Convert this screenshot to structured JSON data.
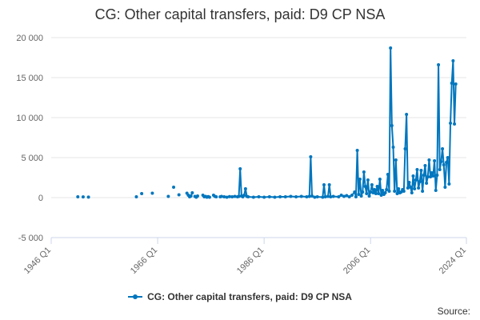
{
  "chart_data": {
    "type": "line",
    "title": "CG: Other capital transfers, paid: D9 CP NSA",
    "xlabel": "",
    "ylabel": "",
    "ylim": [
      -5000,
      20000
    ],
    "yticks": [
      -5000,
      0,
      5000,
      10000,
      15000,
      20000
    ],
    "ytick_labels": [
      "-5 000",
      "0",
      "5 000",
      "10 000",
      "15 000",
      "20 000"
    ],
    "xlim": [
      1946.0,
      2024.0
    ],
    "xticks": [
      1946.0,
      1966.0,
      1986.0,
      2006.0,
      2024.0
    ],
    "xtick_labels": [
      "1946 Q1",
      "1966 Q1",
      "1986 Q1",
      "2006 Q1",
      "2024 Q1"
    ],
    "grid": true,
    "legend_position": "bottom-center",
    "series": [
      {
        "name": "CG: Other capital transfers, paid: D9 CP NSA",
        "color": "#0076be",
        "segments": [
          [
            [
              1951.0,
              100
            ]
          ],
          [
            [
              1952.0,
              90
            ]
          ],
          [
            [
              1953.0,
              60
            ]
          ],
          [
            [
              1962.0,
              100
            ]
          ],
          [
            [
              1963.0,
              500
            ]
          ],
          [
            [
              1965.0,
              550
            ]
          ],
          [
            [
              1968.0,
              150
            ]
          ],
          [
            [
              1969.0,
              1300
            ]
          ],
          [
            [
              1970.0,
              350
            ]
          ],
          [
            [
              1971.5,
              550
            ],
            [
              1971.75,
              300
            ],
            [
              1972.0,
              100
            ],
            [
              1972.25,
              200
            ],
            [
              1972.5,
              600
            ]
          ],
          [
            [
              1973.0,
              150
            ],
            [
              1973.25,
              50
            ],
            [
              1973.5,
              200
            ]
          ],
          [
            [
              1974.5,
              300
            ],
            [
              1974.75,
              100
            ],
            [
              1975.0,
              150
            ],
            [
              1975.25,
              50
            ],
            [
              1975.5,
              120
            ],
            [
              1975.75,
              50
            ]
          ],
          [
            [
              1976.5,
              300
            ],
            [
              1976.75,
              150
            ],
            [
              1977.0,
              100
            ]
          ],
          [
            [
              1977.75,
              100
            ],
            [
              1978.0,
              150
            ],
            [
              1978.5,
              100
            ],
            [
              1979.0,
              50
            ],
            [
              1979.5,
              120
            ],
            [
              1980.0,
              100
            ],
            [
              1980.5,
              150
            ],
            [
              1981.0,
              100
            ],
            [
              1981.25,
              150
            ],
            [
              1981.5,
              3600
            ],
            [
              1981.75,
              200
            ],
            [
              1982.0,
              100
            ],
            [
              1982.25,
              300
            ],
            [
              1982.5,
              1100
            ],
            [
              1982.75,
              150
            ],
            [
              1983.0,
              100
            ],
            [
              1984.0,
              50
            ],
            [
              1985.0,
              100
            ],
            [
              1986.0,
              50
            ],
            [
              1987.0,
              100
            ],
            [
              1988.0,
              50
            ],
            [
              1989.0,
              100
            ],
            [
              1990.0,
              100
            ],
            [
              1991.0,
              150
            ],
            [
              1992.0,
              100
            ],
            [
              1993.0,
              150
            ],
            [
              1994.0,
              100
            ],
            [
              1994.5,
              150
            ],
            [
              1994.75,
              5100
            ],
            [
              1995.0,
              200
            ],
            [
              1995.5,
              50
            ],
            [
              1996.0,
              100
            ],
            [
              1997.0,
              50
            ],
            [
              1997.25,
              1600
            ],
            [
              1997.5,
              100
            ],
            [
              1998.0,
              150
            ],
            [
              1998.25,
              1600
            ],
            [
              1998.5,
              100
            ],
            [
              1999.0,
              150
            ],
            [
              2000.0,
              100
            ],
            [
              2000.5,
              300
            ],
            [
              2001.0,
              150
            ],
            [
              2001.5,
              250
            ],
            [
              2002.0,
              100
            ],
            [
              2002.5,
              300
            ],
            [
              2003.0,
              700
            ],
            [
              2003.25,
              100
            ],
            [
              2003.5,
              5900
            ],
            [
              2003.75,
              400
            ],
            [
              2004.0,
              2300
            ],
            [
              2004.25,
              200
            ],
            [
              2004.5,
              700
            ],
            [
              2004.75,
              3200
            ],
            [
              2005.0,
              1400
            ],
            [
              2005.25,
              500
            ],
            [
              2005.5,
              2200
            ],
            [
              2005.75,
              200
            ],
            [
              2006.0,
              700
            ],
            [
              2006.25,
              1600
            ],
            [
              2006.5,
              600
            ],
            [
              2006.75,
              1000
            ],
            [
              2007.0,
              500
            ],
            [
              2007.25,
              1400
            ],
            [
              2007.5,
              500
            ],
            [
              2007.75,
              2300
            ],
            [
              2008.0,
              300
            ],
            [
              2008.25,
              900
            ],
            [
              2008.5,
              400
            ],
            [
              2008.75,
              600
            ],
            [
              2009.0,
              1000
            ],
            [
              2009.25,
              2900
            ],
            [
              2009.5,
              800
            ],
            [
              2009.75,
              18700
            ],
            [
              2010.0,
              9000
            ],
            [
              2010.25,
              6300
            ],
            [
              2010.5,
              800
            ],
            [
              2010.75,
              4700
            ],
            [
              2011.0,
              500
            ],
            [
              2011.25,
              1100
            ],
            [
              2011.5,
              600
            ],
            [
              2011.75,
              700
            ],
            [
              2012.0,
              1000
            ],
            [
              2012.25,
              800
            ],
            [
              2012.5,
              6100
            ],
            [
              2012.75,
              10400
            ],
            [
              2013.0,
              1200
            ],
            [
              2013.25,
              1900
            ],
            [
              2013.5,
              1300
            ],
            [
              2013.75,
              600
            ],
            [
              2014.0,
              2700
            ],
            [
              2014.25,
              1100
            ],
            [
              2014.5,
              2200
            ],
            [
              2014.75,
              3500
            ],
            [
              2015.0,
              1200
            ],
            [
              2015.25,
              2000
            ],
            [
              2015.5,
              3400
            ],
            [
              2015.75,
              800
            ],
            [
              2016.0,
              2800
            ],
            [
              2016.25,
              4000
            ],
            [
              2016.5,
              1800
            ],
            [
              2016.75,
              2600
            ],
            [
              2017.0,
              4700
            ],
            [
              2017.25,
              2600
            ],
            [
              2017.5,
              3100
            ],
            [
              2017.75,
              2700
            ],
            [
              2018.0,
              4600
            ],
            [
              2018.25,
              900
            ],
            [
              2018.5,
              2800
            ],
            [
              2018.75,
              16600
            ],
            [
              2019.0,
              3500
            ],
            [
              2019.25,
              4500
            ],
            [
              2019.5,
              6100
            ],
            [
              2019.75,
              4100
            ],
            [
              2020.0,
              1300
            ],
            [
              2020.25,
              4400
            ],
            [
              2020.5,
              5000
            ],
            [
              2020.75,
              1700
            ],
            [
              2021.0,
              9300
            ],
            [
              2021.25,
              14300
            ],
            [
              2021.5,
              17100
            ],
            [
              2021.75,
              9200
            ],
            [
              2022.0,
              14200
            ]
          ]
        ]
      }
    ]
  },
  "legend": {
    "label": "CG: Other capital transfers, paid: D9 CP NSA"
  },
  "footer": {
    "source_label": "Source:"
  }
}
